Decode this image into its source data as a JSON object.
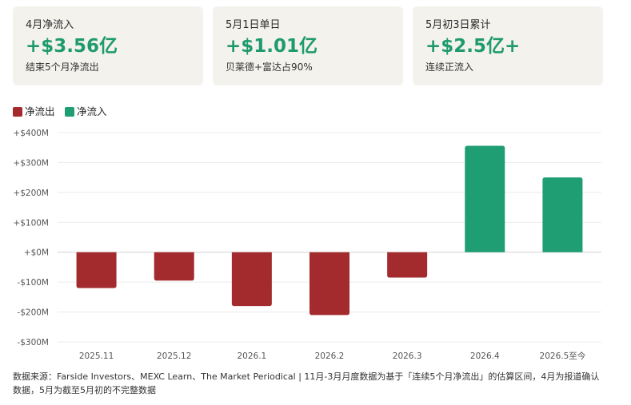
{
  "cards": [
    {
      "label": "4月净流入",
      "value": "+$3.56亿",
      "note": "结束5个月净流出"
    },
    {
      "label": "5月1日单日",
      "value": "+$1.01亿",
      "note": "贝莱德+富达占90%"
    },
    {
      "label": "5月初3日累计",
      "value": "+$2.5亿+",
      "note": "连续正流入"
    }
  ],
  "legend": [
    {
      "label": "净流出",
      "color": "#a32b2d"
    },
    {
      "label": "净流入",
      "color": "#1f9e74"
    }
  ],
  "chart_data": {
    "type": "bar",
    "categories": [
      "2025.11",
      "2025.12",
      "2026.1",
      "2026.2",
      "2026.3",
      "2026.4",
      "2026.5至今"
    ],
    "values": [
      -120,
      -95,
      -180,
      -210,
      -85,
      356,
      250
    ],
    "unit": "M",
    "ylim": [
      -300,
      400
    ],
    "yticks": [
      400,
      300,
      200,
      100,
      0,
      -100,
      -200,
      -300
    ],
    "ytick_labels": [
      "+$400M",
      "+$300M",
      "+$200M",
      "+$100M",
      "+$0M",
      "-$100M",
      "-$200M",
      "-$300M"
    ],
    "grid": true,
    "legend_position": "top-left",
    "colors": {
      "negative": "#a32b2d",
      "positive": "#1f9e74"
    }
  },
  "footer": "数据来源：Farside Investors、MEXC Learn、The Market Periodical | 11月-3月月度数据为基于「连续5个月净流出」的估算区间，4月为报道确认数据，5月为截至5月初的不完整数据"
}
